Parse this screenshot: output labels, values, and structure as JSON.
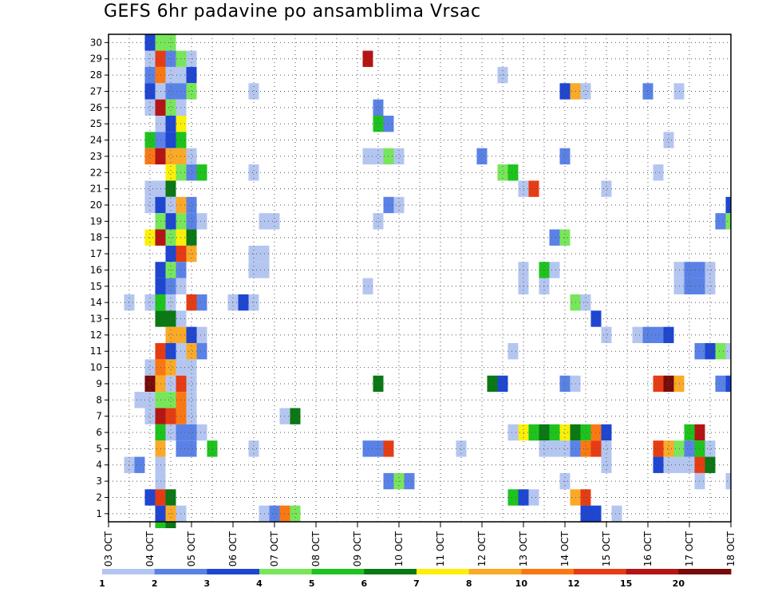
{
  "chart_data": {
    "type": "heatmap",
    "title": "GEFS 6hr padavine po ansamblima Vrsac",
    "xlabel": "",
    "ylabel": "",
    "x_tick_labels": [
      "03 OCT",
      "04 OCT",
      "05 OCT",
      "06 OCT",
      "07 OCT",
      "08 OCT",
      "09 OCT",
      "10 OCT",
      "11 OCT",
      "12 OCT",
      "13 OCT",
      "14 OCT",
      "15 OCT",
      "16 OCT",
      "17 OCT",
      "18 OCT"
    ],
    "y_tick_labels": [
      "1",
      "2",
      "3",
      "4",
      "5",
      "6",
      "7",
      "8",
      "9",
      "10",
      "11",
      "12",
      "13",
      "14",
      "15",
      "16",
      "17",
      "18",
      "19",
      "20",
      "21",
      "22",
      "23",
      "24",
      "25",
      "26",
      "27",
      "28",
      "29",
      "30"
    ],
    "x_range_steps": [
      0,
      60
    ],
    "y_range_members": [
      1,
      30
    ],
    "grid": true,
    "colorbar": {
      "labels": [
        "1",
        "2",
        "3",
        "4",
        "5",
        "6",
        "7",
        "8",
        "10",
        "12",
        "15",
        "20"
      ],
      "colors": [
        "#b4c6f0",
        "#5a82e6",
        "#1e46d2",
        "#78e65a",
        "#1ec31e",
        "#0a7814",
        "#faf00a",
        "#faaa28",
        "#fa7814",
        "#e63c14",
        "#b41414",
        "#780a0a"
      ]
    },
    "cells_note": "each cell: [x_step, member, precipitation_class]; x_step = 6h step from 03 OCT 00Z",
    "cells": [
      [
        4,
        30,
        3
      ],
      [
        5,
        30,
        4
      ],
      [
        6,
        30,
        4
      ],
      [
        4,
        29,
        1
      ],
      [
        5,
        29,
        10
      ],
      [
        6,
        29,
        2
      ],
      [
        7,
        29,
        4
      ],
      [
        8,
        29,
        1
      ],
      [
        25,
        29,
        11
      ],
      [
        4,
        28,
        2
      ],
      [
        5,
        28,
        9
      ],
      [
        6,
        28,
        1
      ],
      [
        7,
        28,
        1
      ],
      [
        8,
        28,
        3
      ],
      [
        38,
        28,
        1
      ],
      [
        4,
        27,
        3
      ],
      [
        5,
        27,
        1
      ],
      [
        6,
        27,
        2
      ],
      [
        7,
        27,
        2
      ],
      [
        8,
        27,
        4
      ],
      [
        14,
        27,
        1
      ],
      [
        44,
        27,
        3
      ],
      [
        45,
        27,
        8
      ],
      [
        46,
        27,
        1
      ],
      [
        52,
        27,
        2
      ],
      [
        55,
        27,
        1
      ],
      [
        4,
        26,
        1
      ],
      [
        5,
        26,
        11
      ],
      [
        6,
        26,
        4
      ],
      [
        7,
        26,
        1
      ],
      [
        26,
        26,
        2
      ],
      [
        5,
        25,
        1
      ],
      [
        6,
        25,
        3
      ],
      [
        7,
        25,
        7
      ],
      [
        26,
        25,
        5
      ],
      [
        27,
        25,
        2
      ],
      [
        4,
        24,
        5
      ],
      [
        5,
        24,
        2
      ],
      [
        6,
        24,
        3
      ],
      [
        7,
        24,
        5
      ],
      [
        54,
        24,
        1
      ],
      [
        4,
        23,
        9
      ],
      [
        5,
        23,
        11
      ],
      [
        6,
        23,
        8
      ],
      [
        7,
        23,
        8
      ],
      [
        8,
        23,
        1
      ],
      [
        25,
        23,
        1
      ],
      [
        26,
        23,
        1
      ],
      [
        27,
        23,
        4
      ],
      [
        28,
        23,
        1
      ],
      [
        36,
        23,
        2
      ],
      [
        44,
        23,
        2
      ],
      [
        6,
        22,
        7
      ],
      [
        7,
        22,
        4
      ],
      [
        8,
        22,
        2
      ],
      [
        9,
        22,
        5
      ],
      [
        14,
        22,
        1
      ],
      [
        38,
        22,
        4
      ],
      [
        39,
        22,
        5
      ],
      [
        53,
        22,
        1
      ],
      [
        4,
        21,
        1
      ],
      [
        5,
        21,
        1
      ],
      [
        6,
        21,
        6
      ],
      [
        40,
        21,
        1
      ],
      [
        41,
        21,
        10
      ],
      [
        48,
        21,
        1
      ],
      [
        4,
        20,
        1
      ],
      [
        5,
        20,
        3
      ],
      [
        6,
        20,
        1
      ],
      [
        7,
        20,
        8
      ],
      [
        8,
        20,
        2
      ],
      [
        27,
        20,
        2
      ],
      [
        28,
        20,
        1
      ],
      [
        60,
        20,
        3
      ],
      [
        5,
        19,
        4
      ],
      [
        6,
        19,
        3
      ],
      [
        7,
        19,
        4
      ],
      [
        8,
        19,
        2
      ],
      [
        9,
        19,
        1
      ],
      [
        15,
        19,
        1
      ],
      [
        16,
        19,
        1
      ],
      [
        26,
        19,
        1
      ],
      [
        59,
        19,
        2
      ],
      [
        60,
        19,
        4
      ],
      [
        4,
        18,
        7
      ],
      [
        5,
        18,
        11
      ],
      [
        6,
        18,
        4
      ],
      [
        7,
        18,
        7
      ],
      [
        8,
        18,
        6
      ],
      [
        43,
        18,
        2
      ],
      [
        44,
        18,
        4
      ],
      [
        6,
        17,
        3
      ],
      [
        7,
        17,
        10
      ],
      [
        8,
        17,
        8
      ],
      [
        14,
        17,
        1
      ],
      [
        15,
        17,
        1
      ],
      [
        5,
        16,
        3
      ],
      [
        6,
        16,
        4
      ],
      [
        7,
        16,
        2
      ],
      [
        14,
        16,
        1
      ],
      [
        15,
        16,
        1
      ],
      [
        40,
        16,
        1
      ],
      [
        42,
        16,
        5
      ],
      [
        43,
        16,
        1
      ],
      [
        55,
        16,
        1
      ],
      [
        56,
        16,
        2
      ],
      [
        57,
        16,
        2
      ],
      [
        58,
        16,
        1
      ],
      [
        5,
        15,
        3
      ],
      [
        6,
        15,
        2
      ],
      [
        7,
        15,
        1
      ],
      [
        25,
        15,
        1
      ],
      [
        40,
        15,
        1
      ],
      [
        42,
        15,
        1
      ],
      [
        55,
        15,
        1
      ],
      [
        56,
        15,
        2
      ],
      [
        57,
        15,
        2
      ],
      [
        58,
        15,
        1
      ],
      [
        2,
        14,
        1
      ],
      [
        4,
        14,
        1
      ],
      [
        5,
        14,
        5
      ],
      [
        6,
        14,
        1
      ],
      [
        8,
        14,
        10
      ],
      [
        9,
        14,
        2
      ],
      [
        12,
        14,
        1
      ],
      [
        13,
        14,
        3
      ],
      [
        14,
        14,
        1
      ],
      [
        45,
        14,
        4
      ],
      [
        46,
        14,
        1
      ],
      [
        5,
        13,
        6
      ],
      [
        6,
        13,
        6
      ],
      [
        7,
        13,
        1
      ],
      [
        47,
        13,
        3
      ],
      [
        6,
        12,
        8
      ],
      [
        7,
        12,
        8
      ],
      [
        8,
        12,
        3
      ],
      [
        9,
        12,
        1
      ],
      [
        48,
        12,
        1
      ],
      [
        51,
        12,
        1
      ],
      [
        52,
        12,
        2
      ],
      [
        53,
        12,
        2
      ],
      [
        54,
        12,
        3
      ],
      [
        5,
        11,
        10
      ],
      [
        6,
        11,
        3
      ],
      [
        7,
        11,
        1
      ],
      [
        8,
        11,
        8
      ],
      [
        9,
        11,
        2
      ],
      [
        39,
        11,
        1
      ],
      [
        57,
        11,
        2
      ],
      [
        58,
        11,
        3
      ],
      [
        59,
        11,
        4
      ],
      [
        60,
        11,
        1
      ],
      [
        4,
        10,
        1
      ],
      [
        5,
        10,
        9
      ],
      [
        6,
        10,
        8
      ],
      [
        7,
        10,
        1
      ],
      [
        8,
        10,
        1
      ],
      [
        4,
        9,
        12
      ],
      [
        5,
        9,
        8
      ],
      [
        6,
        9,
        1
      ],
      [
        7,
        9,
        10
      ],
      [
        8,
        9,
        1
      ],
      [
        26,
        9,
        6
      ],
      [
        37,
        9,
        6
      ],
      [
        38,
        9,
        3
      ],
      [
        44,
        9,
        2
      ],
      [
        45,
        9,
        1
      ],
      [
        53,
        9,
        10
      ],
      [
        54,
        9,
        12
      ],
      [
        55,
        9,
        8
      ],
      [
        59,
        9,
        2
      ],
      [
        60,
        9,
        3
      ],
      [
        3,
        8,
        1
      ],
      [
        4,
        8,
        1
      ],
      [
        5,
        8,
        4
      ],
      [
        6,
        8,
        4
      ],
      [
        7,
        8,
        9
      ],
      [
        8,
        8,
        1
      ],
      [
        4,
        7,
        1
      ],
      [
        5,
        7,
        11
      ],
      [
        6,
        7,
        10
      ],
      [
        7,
        7,
        9
      ],
      [
        8,
        7,
        1
      ],
      [
        17,
        7,
        1
      ],
      [
        18,
        7,
        6
      ],
      [
        5,
        6,
        5
      ],
      [
        6,
        6,
        1
      ],
      [
        7,
        6,
        2
      ],
      [
        8,
        6,
        2
      ],
      [
        9,
        6,
        1
      ],
      [
        39,
        6,
        1
      ],
      [
        40,
        6,
        7
      ],
      [
        41,
        6,
        5
      ],
      [
        42,
        6,
        6
      ],
      [
        43,
        6,
        5
      ],
      [
        44,
        6,
        7
      ],
      [
        45,
        6,
        6
      ],
      [
        46,
        6,
        5
      ],
      [
        47,
        6,
        9
      ],
      [
        48,
        6,
        3
      ],
      [
        56,
        6,
        5
      ],
      [
        57,
        6,
        11
      ],
      [
        5,
        5,
        8
      ],
      [
        7,
        5,
        2
      ],
      [
        8,
        5,
        2
      ],
      [
        10,
        5,
        5
      ],
      [
        14,
        5,
        1
      ],
      [
        25,
        5,
        2
      ],
      [
        26,
        5,
        2
      ],
      [
        27,
        5,
        10
      ],
      [
        34,
        5,
        1
      ],
      [
        42,
        5,
        1
      ],
      [
        43,
        5,
        1
      ],
      [
        44,
        5,
        1
      ],
      [
        45,
        5,
        2
      ],
      [
        46,
        5,
        9
      ],
      [
        47,
        5,
        10
      ],
      [
        48,
        5,
        1
      ],
      [
        53,
        5,
        10
      ],
      [
        54,
        5,
        8
      ],
      [
        55,
        5,
        4
      ],
      [
        56,
        5,
        2
      ],
      [
        57,
        5,
        5
      ],
      [
        58,
        5,
        1
      ],
      [
        2,
        4,
        1
      ],
      [
        3,
        4,
        2
      ],
      [
        5,
        4,
        1
      ],
      [
        48,
        4,
        1
      ],
      [
        53,
        4,
        3
      ],
      [
        54,
        4,
        1
      ],
      [
        55,
        4,
        1
      ],
      [
        56,
        4,
        1
      ],
      [
        57,
        4,
        10
      ],
      [
        58,
        4,
        6
      ],
      [
        5,
        3,
        1
      ],
      [
        27,
        3,
        2
      ],
      [
        28,
        3,
        4
      ],
      [
        29,
        3,
        2
      ],
      [
        44,
        3,
        1
      ],
      [
        57,
        3,
        1
      ],
      [
        60,
        3,
        1
      ],
      [
        4,
        2,
        3
      ],
      [
        5,
        2,
        10
      ],
      [
        6,
        2,
        6
      ],
      [
        39,
        2,
        5
      ],
      [
        40,
        2,
        3
      ],
      [
        41,
        2,
        1
      ],
      [
        45,
        2,
        8
      ],
      [
        46,
        2,
        10
      ],
      [
        5,
        1,
        3
      ],
      [
        6,
        1,
        8
      ],
      [
        7,
        1,
        1
      ],
      [
        15,
        1,
        1
      ],
      [
        16,
        1,
        2
      ],
      [
        17,
        1,
        9
      ],
      [
        18,
        1,
        4
      ],
      [
        46,
        1,
        3
      ],
      [
        47,
        1,
        3
      ],
      [
        49,
        1,
        1
      ],
      [
        5,
        0,
        5
      ],
      [
        6,
        0,
        6
      ]
    ]
  }
}
